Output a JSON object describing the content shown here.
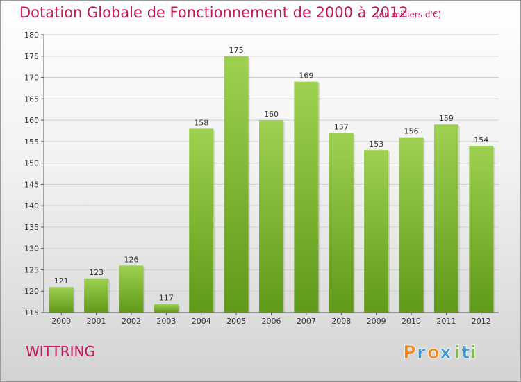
{
  "title": "Dotation Globale de Fonctionnement de 2000 à 2012",
  "unit_note": "(en milliers d'€)",
  "commune": "WITTRING",
  "logo": {
    "text": "Proxiti",
    "letters": [
      "P",
      "r",
      "o",
      "x",
      "i",
      "t",
      "i"
    ],
    "colors": [
      "#f08a1e",
      "#3a9ad9",
      "#f08a1e",
      "#3a9ad9",
      "#7bc043",
      "#3a9ad9",
      "#7bc043"
    ]
  },
  "colors": {
    "bar_top": "#9ed14f",
    "bar_bottom": "#5f9a18",
    "title": "#c2185b",
    "axis": "#555555",
    "grid": "#cfcfcf"
  },
  "chart_data": {
    "type": "bar",
    "title": "Dotation Globale de Fonctionnement de 2000 à 2012",
    "categories": [
      "2000",
      "2001",
      "2002",
      "2003",
      "2004",
      "2005",
      "2006",
      "2007",
      "2008",
      "2009",
      "2010",
      "2011",
      "2012"
    ],
    "values": [
      121,
      123,
      126,
      117,
      158,
      175,
      160,
      169,
      157,
      153,
      156,
      159,
      154
    ],
    "ylim": [
      115,
      180
    ],
    "yticks": [
      115,
      120,
      125,
      130,
      135,
      140,
      145,
      150,
      155,
      160,
      165,
      170,
      175,
      180
    ],
    "grid": true,
    "legend": "none",
    "data_labels": true
  }
}
